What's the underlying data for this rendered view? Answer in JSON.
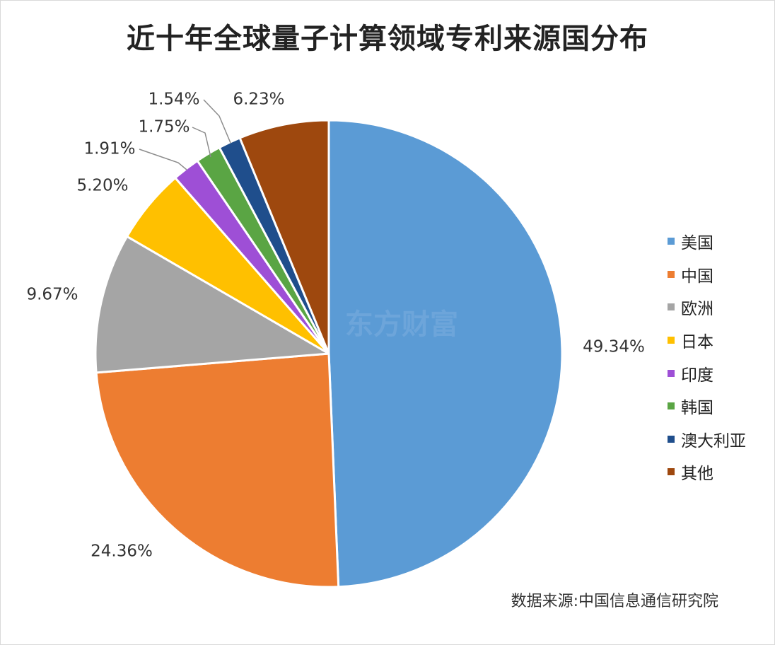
{
  "title": "近十年全球量子计算领域专利来源国分布",
  "source": "数据来源:中国信息通信研究院",
  "watermark": "东方财富",
  "chart_data": {
    "type": "pie",
    "title": "近十年全球量子计算领域专利来源国分布",
    "legend_position": "right",
    "slices": [
      {
        "label": "美国",
        "value": 49.34,
        "display": "49.34%",
        "color": "#5b9bd5"
      },
      {
        "label": "中国",
        "value": 24.36,
        "display": "24.36%",
        "color": "#ed7d31"
      },
      {
        "label": "欧洲",
        "value": 9.67,
        "display": "9.67%",
        "color": "#a5a5a5"
      },
      {
        "label": "日本",
        "value": 5.2,
        "display": "5.20%",
        "color": "#ffc000"
      },
      {
        "label": "印度",
        "value": 1.91,
        "display": "1.91%",
        "color": "#9e4fd6"
      },
      {
        "label": "韩国",
        "value": 1.75,
        "display": "1.75%",
        "color": "#5aa544"
      },
      {
        "label": "澳大利亚",
        "value": 1.54,
        "display": "1.54%",
        "color": "#1f4e8c"
      },
      {
        "label": "其他",
        "value": 6.23,
        "display": "6.23%",
        "color": "#9e480e"
      }
    ]
  }
}
